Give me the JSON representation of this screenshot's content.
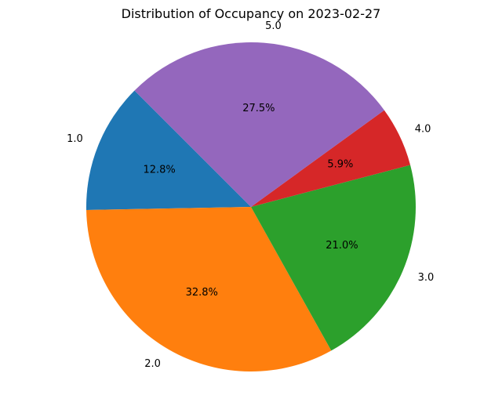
{
  "chart_data": {
    "type": "pie",
    "title": "Distribution of Occupancy on 2023-02-27",
    "categories": [
      "1.0",
      "2.0",
      "3.0",
      "4.0",
      "5.0"
    ],
    "values": [
      12.8,
      32.8,
      21.0,
      5.9,
      27.5
    ],
    "percent_labels": [
      "12.8%",
      "32.8%",
      "21.0%",
      "5.9%",
      "27.5%"
    ],
    "colors": [
      "#1f77b4",
      "#ff7f0e",
      "#2ca02c",
      "#d62728",
      "#9467bd"
    ],
    "start_angle_deg": 135,
    "direction": "counterclockwise",
    "legend": "none"
  }
}
